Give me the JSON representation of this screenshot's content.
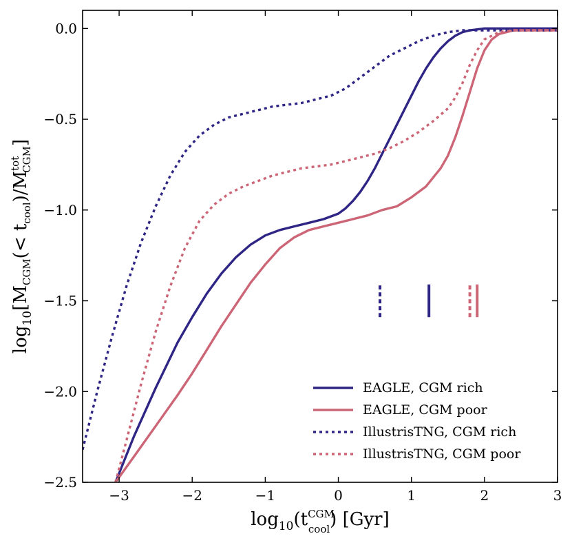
{
  "chart_data": {
    "type": "line",
    "title": "",
    "xlabel": "log10(t_cool^CGM) [Gyr]",
    "ylabel": "log10[M_CGM(< t_cool)/M_CGM^tot]",
    "xlabel_parts": {
      "prefix": "log",
      "sub": "10",
      "open": "(t",
      "sup": "CGM",
      "subs": "cool",
      "rest": ") [Gyr]"
    },
    "ylabel_parts": {
      "prefix": "log",
      "sub": "10",
      "a": "[M",
      "sub2": "CGM",
      "b": "(< t",
      "sub3": "cool",
      "c": ")/M",
      "sup4": "tot",
      "sub4": "CGM",
      "d": "]"
    },
    "xlim": [
      -3.5,
      3
    ],
    "ylim": [
      -2.5,
      0.1
    ],
    "xticks": [
      -3,
      -2,
      -1,
      0,
      1,
      2,
      3
    ],
    "yticks": [
      -2.5,
      -2.0,
      -1.5,
      -1.0,
      -0.5,
      0.0
    ],
    "xtick_labels": [
      "−3",
      "−2",
      "−1",
      "0",
      "1",
      "2",
      "3"
    ],
    "ytick_labels": [
      "−2.5",
      "−2.0",
      "−1.5",
      "−1.0",
      "−0.5",
      "0.0"
    ],
    "legend_position": "lower-right",
    "series": [
      {
        "name": "EAGLE, CGM rich",
        "color": "#2e2585",
        "linestyle": "solid",
        "x": [
          -3.05,
          -2.8,
          -2.5,
          -2.2,
          -2.0,
          -1.8,
          -1.6,
          -1.4,
          -1.2,
          -1.0,
          -0.8,
          -0.6,
          -0.4,
          -0.2,
          0.0,
          0.1,
          0.2,
          0.3,
          0.4,
          0.5,
          0.6,
          0.7,
          0.8,
          0.9,
          1.0,
          1.1,
          1.2,
          1.3,
          1.4,
          1.5,
          1.6,
          1.7,
          1.8,
          1.9,
          2.0,
          2.2,
          2.5,
          3.0
        ],
        "y": [
          -2.5,
          -2.25,
          -1.98,
          -1.73,
          -1.59,
          -1.46,
          -1.35,
          -1.26,
          -1.19,
          -1.14,
          -1.11,
          -1.09,
          -1.07,
          -1.05,
          -1.02,
          -0.99,
          -0.95,
          -0.9,
          -0.84,
          -0.77,
          -0.69,
          -0.61,
          -0.53,
          -0.45,
          -0.37,
          -0.29,
          -0.22,
          -0.16,
          -0.11,
          -0.07,
          -0.04,
          -0.02,
          -0.01,
          -0.005,
          0.0,
          0.0,
          0.0,
          0.0
        ]
      },
      {
        "name": "EAGLE, CGM poor",
        "color": "#cc6677",
        "linestyle": "solid",
        "x": [
          -3.05,
          -2.8,
          -2.5,
          -2.2,
          -2.0,
          -1.8,
          -1.6,
          -1.4,
          -1.2,
          -1.0,
          -0.8,
          -0.6,
          -0.4,
          -0.2,
          0.0,
          0.2,
          0.4,
          0.6,
          0.8,
          1.0,
          1.2,
          1.4,
          1.5,
          1.6,
          1.7,
          1.8,
          1.9,
          2.0,
          2.1,
          2.2,
          2.4,
          2.6,
          3.0
        ],
        "y": [
          -2.5,
          -2.36,
          -2.19,
          -2.02,
          -1.9,
          -1.77,
          -1.64,
          -1.52,
          -1.4,
          -1.3,
          -1.21,
          -1.15,
          -1.11,
          -1.09,
          -1.07,
          -1.05,
          -1.03,
          -1.0,
          -0.98,
          -0.93,
          -0.87,
          -0.77,
          -0.7,
          -0.6,
          -0.48,
          -0.35,
          -0.22,
          -0.12,
          -0.06,
          -0.03,
          -0.01,
          -0.01,
          -0.01
        ]
      },
      {
        "name": "IllustrisTNG, CGM rich",
        "color": "#2e2585",
        "linestyle": "dotted",
        "x": [
          -3.5,
          -3.3,
          -3.1,
          -2.9,
          -2.7,
          -2.5,
          -2.3,
          -2.1,
          -1.9,
          -1.7,
          -1.5,
          -1.3,
          -1.1,
          -0.9,
          -0.7,
          -0.5,
          -0.3,
          -0.1,
          0.1,
          0.3,
          0.5,
          0.7,
          0.9,
          1.1,
          1.3,
          1.5,
          1.7,
          1.9,
          2.1,
          2.3,
          2.6,
          3.0
        ],
        "y": [
          -2.32,
          -2.0,
          -1.7,
          -1.42,
          -1.18,
          -0.98,
          -0.81,
          -0.68,
          -0.59,
          -0.53,
          -0.49,
          -0.47,
          -0.45,
          -0.43,
          -0.42,
          -0.41,
          -0.39,
          -0.37,
          -0.33,
          -0.27,
          -0.21,
          -0.15,
          -0.11,
          -0.07,
          -0.04,
          -0.02,
          -0.01,
          -0.01,
          -0.01,
          -0.01,
          -0.01,
          -0.01
        ]
      },
      {
        "name": "IllustrisTNG, CGM poor",
        "color": "#cc6677",
        "linestyle": "dotted",
        "x": [
          -3.05,
          -2.9,
          -2.7,
          -2.5,
          -2.3,
          -2.1,
          -1.9,
          -1.7,
          -1.5,
          -1.3,
          -1.1,
          -0.9,
          -0.7,
          -0.5,
          -0.3,
          -0.1,
          0.1,
          0.3,
          0.5,
          0.7,
          0.9,
          1.1,
          1.3,
          1.5,
          1.6,
          1.7,
          1.8,
          1.9,
          2.0,
          2.2,
          2.4,
          2.6,
          3.0
        ],
        "y": [
          -2.5,
          -2.27,
          -1.96,
          -1.67,
          -1.42,
          -1.21,
          -1.06,
          -0.97,
          -0.91,
          -0.87,
          -0.84,
          -0.81,
          -0.79,
          -0.77,
          -0.76,
          -0.75,
          -0.73,
          -0.71,
          -0.69,
          -0.66,
          -0.62,
          -0.57,
          -0.51,
          -0.44,
          -0.38,
          -0.3,
          -0.2,
          -0.12,
          -0.06,
          -0.02,
          -0.01,
          -0.01,
          -0.01
        ]
      }
    ],
    "median_markers": [
      {
        "name": "IllustrisTNG, CGM rich median",
        "x": 0.57,
        "y_range": [
          -1.59,
          -1.41
        ],
        "color": "#2e2585",
        "linestyle": "dashed"
      },
      {
        "name": "EAGLE, CGM rich median",
        "x": 1.24,
        "y_range": [
          -1.59,
          -1.41
        ],
        "color": "#2e2585",
        "linestyle": "solid"
      },
      {
        "name": "IllustrisTNG, CGM poor median",
        "x": 1.8,
        "y_range": [
          -1.59,
          -1.41
        ],
        "color": "#cc6677",
        "linestyle": "dashed"
      },
      {
        "name": "EAGLE, CGM poor median",
        "x": 1.9,
        "y_range": [
          -1.59,
          -1.41
        ],
        "color": "#cc6677",
        "linestyle": "solid"
      }
    ]
  }
}
